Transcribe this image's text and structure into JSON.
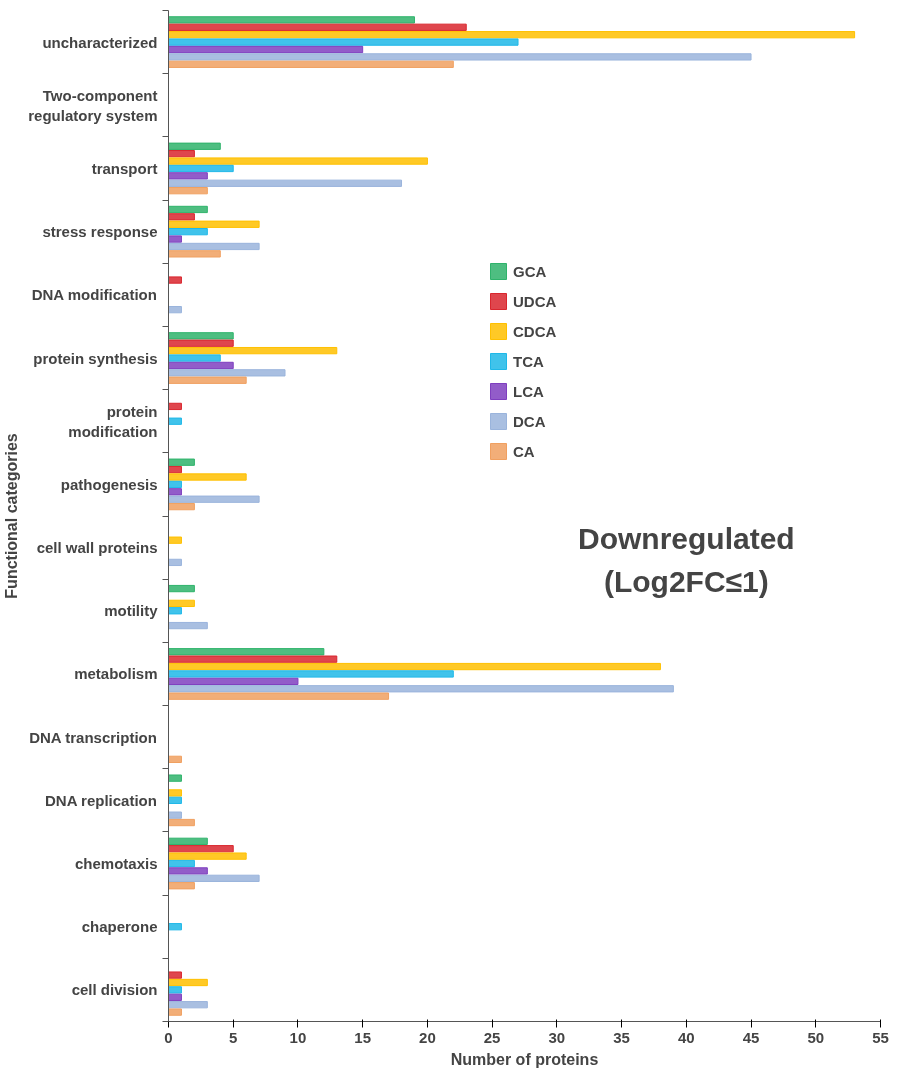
{
  "chart_data": {
    "type": "bar",
    "orientation": "horizontal",
    "xlabel": "Number of proteins",
    "ylabel": "Functional categories",
    "annotations": [
      "Downregulated (Log2FC≤1)"
    ],
    "categories": [
      "uncharacterized",
      "Two-component regulatory system",
      "transport",
      "stress response",
      "DNA modification",
      "protein synthesis",
      "protein modification",
      "pathogenesis",
      "cell wall proteins",
      "motility",
      "metabolism",
      "DNA transcription",
      "DNA replication",
      "chemotaxis",
      "chaperone",
      "cell division"
    ],
    "series": [
      {
        "name": "GCA",
        "color": "#2fb36b",
        "values": [
          19,
          null,
          4,
          3,
          null,
          5,
          null,
          2,
          null,
          2,
          12,
          null,
          1,
          3,
          null,
          null
        ]
      },
      {
        "name": "UDCA",
        "color": "#d9262e",
        "values": [
          23,
          null,
          2,
          2,
          1,
          5,
          1,
          1,
          null,
          null,
          13,
          null,
          null,
          5,
          null,
          1
        ]
      },
      {
        "name": "CDCA",
        "color": "#ffc000",
        "values": [
          53,
          null,
          20,
          7,
          null,
          13,
          null,
          6,
          1,
          2,
          38,
          null,
          1,
          6,
          null,
          3
        ]
      },
      {
        "name": "TCA",
        "color": "#1fb8e8",
        "values": [
          27,
          null,
          5,
          3,
          null,
          4,
          1,
          1,
          null,
          1,
          22,
          null,
          1,
          2,
          1,
          1
        ]
      },
      {
        "name": "LCA",
        "color": "#7f3fbf",
        "values": [
          15,
          null,
          3,
          1,
          null,
          5,
          null,
          1,
          null,
          null,
          10,
          null,
          null,
          3,
          null,
          1
        ]
      },
      {
        "name": "DCA",
        "color": "#9ab4dc",
        "values": [
          45,
          null,
          18,
          7,
          1,
          9,
          null,
          7,
          1,
          3,
          39,
          null,
          1,
          7,
          null,
          3
        ]
      },
      {
        "name": "CA",
        "color": "#f0a060",
        "values": [
          22,
          null,
          3,
          4,
          null,
          6,
          null,
          2,
          null,
          null,
          17,
          1,
          2,
          2,
          null,
          1
        ]
      }
    ],
    "xlim": [
      0,
      55
    ],
    "xticks": [
      0,
      5,
      10,
      15,
      20,
      25,
      30,
      35,
      40,
      45,
      50,
      55
    ],
    "legend": "right",
    "grid": false
  }
}
